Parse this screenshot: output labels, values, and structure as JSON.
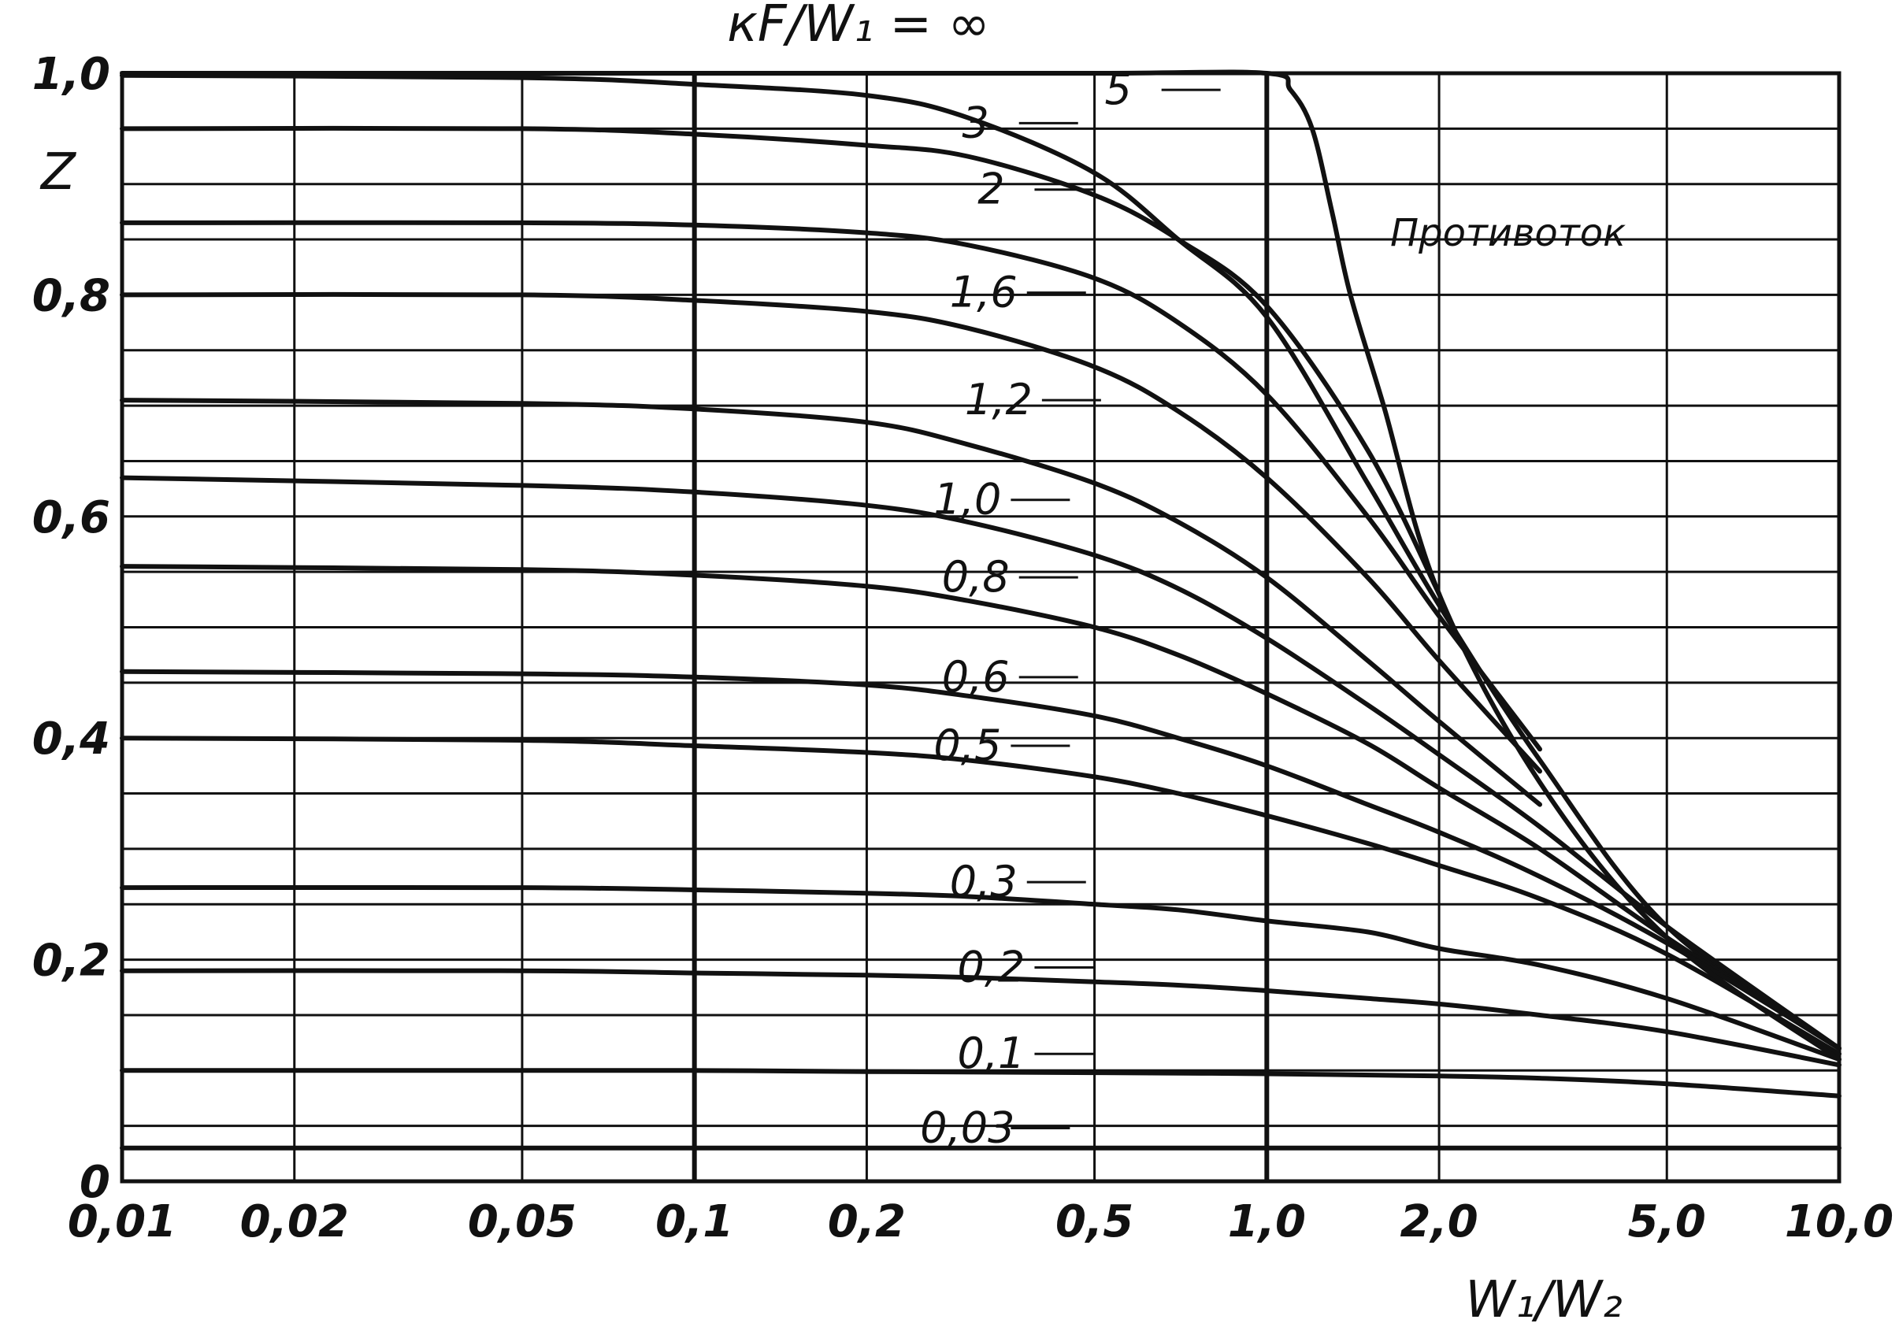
{
  "chart_data": {
    "type": "line",
    "title": "кF/W₁ = ∞",
    "xlabel": "W₁/W₂",
    "ylabel": "Z",
    "x_scale": "log",
    "xlim": [
      0.01,
      10.0
    ],
    "ylim": [
      0,
      1.0
    ],
    "grid": true,
    "annotation": "Противоток",
    "x_ticks": [
      {
        "value": 0.01,
        "label": "0,01"
      },
      {
        "value": 0.02,
        "label": "0,02"
      },
      {
        "value": 0.05,
        "label": "0,05"
      },
      {
        "value": 0.1,
        "label": "0,1"
      },
      {
        "value": 0.2,
        "label": "0,2"
      },
      {
        "value": 0.5,
        "label": "0,5"
      },
      {
        "value": 1.0,
        "label": "1,0"
      },
      {
        "value": 2.0,
        "label": "2,0"
      },
      {
        "value": 5.0,
        "label": "5,0"
      },
      {
        "value": 10.0,
        "label": "10,0"
      }
    ],
    "y_ticks": [
      {
        "value": 0,
        "label": "0"
      },
      {
        "value": 0.2,
        "label": "0,2"
      },
      {
        "value": 0.4,
        "label": "0,4"
      },
      {
        "value": 0.6,
        "label": "0,6"
      },
      {
        "value": 0.8,
        "label": "0,8"
      },
      {
        "value": 1.0,
        "label": "1,0"
      }
    ],
    "series": [
      {
        "label": "5",
        "label_at": [
          0.55,
          0.985
        ],
        "points": [
          [
            0.01,
            0.998
          ],
          [
            0.05,
            0.996
          ],
          [
            0.1,
            0.99
          ],
          [
            0.2,
            0.98
          ],
          [
            0.3,
            0.96
          ],
          [
            0.5,
            0.91
          ],
          [
            0.7,
            0.85
          ],
          [
            1.0,
            0.78
          ],
          [
            1.5,
            0.63
          ],
          [
            2.0,
            0.52
          ],
          [
            3.0,
            0.38
          ],
          [
            5.0,
            0.23
          ],
          [
            10.0,
            0.12
          ]
        ]
      },
      {
        "label": "3",
        "label_at": [
          0.31,
          0.955
        ],
        "points": [
          [
            0.01,
            0.95
          ],
          [
            0.05,
            0.95
          ],
          [
            0.1,
            0.945
          ],
          [
            0.2,
            0.935
          ],
          [
            0.3,
            0.925
          ],
          [
            0.5,
            0.89
          ],
          [
            0.7,
            0.85
          ],
          [
            1.0,
            0.79
          ],
          [
            1.5,
            0.66
          ],
          [
            2.0,
            0.53
          ]
        ]
      },
      {
        "label": "2",
        "label_at": [
          0.33,
          0.895
        ],
        "points": [
          [
            0.01,
            0.865
          ],
          [
            0.05,
            0.865
          ],
          [
            0.1,
            0.863
          ],
          [
            0.2,
            0.856
          ],
          [
            0.3,
            0.845
          ],
          [
            0.5,
            0.815
          ],
          [
            0.7,
            0.775
          ],
          [
            1.0,
            0.71
          ],
          [
            1.5,
            0.6
          ],
          [
            2.0,
            0.51
          ],
          [
            3.0,
            0.39
          ]
        ]
      },
      {
        "label": "1,6",
        "label_at": [
          0.32,
          0.802
        ],
        "points": [
          [
            0.01,
            0.8
          ],
          [
            0.05,
            0.8
          ],
          [
            0.1,
            0.795
          ],
          [
            0.2,
            0.785
          ],
          [
            0.3,
            0.77
          ],
          [
            0.5,
            0.735
          ],
          [
            0.7,
            0.695
          ],
          [
            1.0,
            0.635
          ],
          [
            1.5,
            0.545
          ],
          [
            2.0,
            0.47
          ],
          [
            3.0,
            0.37
          ]
        ]
      },
      {
        "label": "1,2",
        "label_at": [
          0.34,
          0.705
        ],
        "points": [
          [
            0.01,
            0.705
          ],
          [
            0.05,
            0.702
          ],
          [
            0.1,
            0.697
          ],
          [
            0.2,
            0.685
          ],
          [
            0.3,
            0.665
          ],
          [
            0.5,
            0.63
          ],
          [
            0.7,
            0.595
          ],
          [
            1.0,
            0.545
          ],
          [
            1.5,
            0.47
          ],
          [
            2.0,
            0.415
          ],
          [
            3.0,
            0.34
          ]
        ]
      },
      {
        "label": "1,0",
        "label_at": [
          0.3,
          0.615
        ],
        "points": [
          [
            0.01,
            0.635
          ],
          [
            0.05,
            0.628
          ],
          [
            0.1,
            0.622
          ],
          [
            0.2,
            0.61
          ],
          [
            0.3,
            0.595
          ],
          [
            0.5,
            0.565
          ],
          [
            0.7,
            0.535
          ],
          [
            1.0,
            0.49
          ],
          [
            1.5,
            0.43
          ],
          [
            2.0,
            0.385
          ],
          [
            3.0,
            0.32
          ],
          [
            5.0,
            0.23
          ],
          [
            10.0,
            0.12
          ]
        ]
      },
      {
        "label": "0,8",
        "label_at": [
          0.31,
          0.545
        ],
        "points": [
          [
            0.01,
            0.555
          ],
          [
            0.05,
            0.552
          ],
          [
            0.1,
            0.547
          ],
          [
            0.2,
            0.537
          ],
          [
            0.3,
            0.524
          ],
          [
            0.5,
            0.5
          ],
          [
            0.7,
            0.475
          ],
          [
            1.0,
            0.44
          ],
          [
            1.5,
            0.395
          ],
          [
            2.0,
            0.355
          ],
          [
            3.0,
            0.3
          ],
          [
            5.0,
            0.22
          ],
          [
            10.0,
            0.12
          ]
        ]
      },
      {
        "label": "0,6",
        "label_at": [
          0.31,
          0.455
        ],
        "points": [
          [
            0.01,
            0.46
          ],
          [
            0.05,
            0.458
          ],
          [
            0.1,
            0.455
          ],
          [
            0.2,
            0.448
          ],
          [
            0.3,
            0.438
          ],
          [
            0.5,
            0.42
          ],
          [
            0.7,
            0.4
          ],
          [
            1.0,
            0.375
          ],
          [
            1.5,
            0.34
          ],
          [
            2.0,
            0.315
          ],
          [
            3.0,
            0.275
          ],
          [
            5.0,
            0.215
          ],
          [
            10.0,
            0.12
          ]
        ]
      },
      {
        "label": "0,5",
        "label_at": [
          0.3,
          0.393
        ],
        "points": [
          [
            0.01,
            0.4
          ],
          [
            0.05,
            0.398
          ],
          [
            0.1,
            0.393
          ],
          [
            0.2,
            0.387
          ],
          [
            0.3,
            0.38
          ],
          [
            0.5,
            0.365
          ],
          [
            0.7,
            0.35
          ],
          [
            1.0,
            0.33
          ],
          [
            1.5,
            0.305
          ],
          [
            2.0,
            0.285
          ],
          [
            3.0,
            0.255
          ],
          [
            5.0,
            0.205
          ],
          [
            10.0,
            0.115
          ]
        ]
      },
      {
        "label": "0,3",
        "label_at": [
          0.32,
          0.27
        ],
        "points": [
          [
            0.01,
            0.265
          ],
          [
            0.05,
            0.265
          ],
          [
            0.1,
            0.263
          ],
          [
            0.2,
            0.26
          ],
          [
            0.3,
            0.257
          ],
          [
            0.5,
            0.25
          ],
          [
            0.7,
            0.245
          ],
          [
            1.0,
            0.235
          ],
          [
            1.5,
            0.225
          ],
          [
            2.0,
            0.21
          ],
          [
            3.0,
            0.195
          ],
          [
            5.0,
            0.165
          ],
          [
            10.0,
            0.11
          ]
        ]
      },
      {
        "label": "0,2",
        "label_at": [
          0.33,
          0.193
        ],
        "points": [
          [
            0.01,
            0.19
          ],
          [
            0.05,
            0.19
          ],
          [
            0.1,
            0.188
          ],
          [
            0.2,
            0.186
          ],
          [
            0.3,
            0.184
          ],
          [
            0.5,
            0.18
          ],
          [
            0.7,
            0.177
          ],
          [
            1.0,
            0.172
          ],
          [
            1.5,
            0.165
          ],
          [
            2.0,
            0.16
          ],
          [
            3.0,
            0.15
          ],
          [
            5.0,
            0.135
          ],
          [
            10.0,
            0.105
          ]
        ]
      },
      {
        "label": "0,1",
        "label_at": [
          0.33,
          0.115
        ],
        "points": [
          [
            0.01,
            0.1
          ],
          [
            0.05,
            0.1
          ],
          [
            0.1,
            0.1
          ],
          [
            0.2,
            0.099
          ],
          [
            0.5,
            0.098
          ],
          [
            1.0,
            0.097
          ],
          [
            2.0,
            0.095
          ],
          [
            3.0,
            0.093
          ],
          [
            5.0,
            0.088
          ],
          [
            10.0,
            0.077
          ]
        ]
      },
      {
        "label": "0,03",
        "label_at": [
          0.3,
          0.048
        ],
        "points": [
          [
            0.01,
            0.03
          ],
          [
            0.1,
            0.03
          ],
          [
            1.0,
            0.03
          ],
          [
            10.0,
            0.03
          ]
        ]
      },
      {
        "label": "",
        "label_at": null,
        "points": [
          [
            0.01,
            1.0
          ],
          [
            0.1,
            1.0
          ],
          [
            0.5,
            1.0
          ],
          [
            1.0,
            1.0
          ],
          [
            1.1,
            0.985
          ],
          [
            1.2,
            0.95
          ],
          [
            1.3,
            0.875
          ],
          [
            1.4,
            0.8
          ],
          [
            1.6,
            0.7
          ],
          [
            2.0,
            0.53
          ],
          [
            3.0,
            0.36
          ],
          [
            5.0,
            0.22
          ],
          [
            10.0,
            0.11
          ]
        ]
      }
    ]
  }
}
